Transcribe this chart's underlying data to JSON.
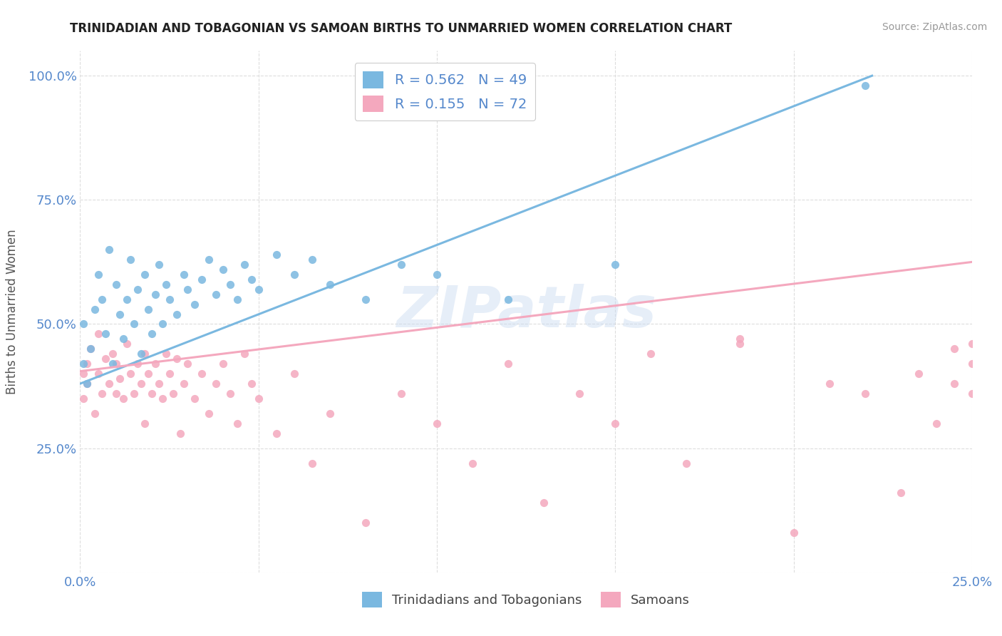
{
  "title": "TRINIDADIAN AND TOBAGONIAN VS SAMOAN BIRTHS TO UNMARRIED WOMEN CORRELATION CHART",
  "source": "Source: ZipAtlas.com",
  "ylabel": "Births to Unmarried Women",
  "blue_label": "Trinidadians and Tobagonians",
  "pink_label": "Samoans",
  "blue_R": "0.562",
  "blue_N": "49",
  "pink_R": "0.155",
  "pink_N": "72",
  "blue_color": "#7ab8e0",
  "pink_color": "#f4a8be",
  "watermark": "ZIPatlas",
  "blue_scatter_x": [
    0.001,
    0.001,
    0.002,
    0.003,
    0.004,
    0.005,
    0.006,
    0.007,
    0.008,
    0.009,
    0.01,
    0.011,
    0.012,
    0.013,
    0.014,
    0.015,
    0.016,
    0.017,
    0.018,
    0.019,
    0.02,
    0.021,
    0.022,
    0.023,
    0.024,
    0.025,
    0.027,
    0.029,
    0.03,
    0.032,
    0.034,
    0.036,
    0.038,
    0.04,
    0.042,
    0.044,
    0.046,
    0.048,
    0.05,
    0.055,
    0.06,
    0.065,
    0.07,
    0.08,
    0.09,
    0.1,
    0.12,
    0.15,
    0.22
  ],
  "blue_scatter_y": [
    0.42,
    0.5,
    0.38,
    0.45,
    0.53,
    0.6,
    0.55,
    0.48,
    0.65,
    0.42,
    0.58,
    0.52,
    0.47,
    0.55,
    0.63,
    0.5,
    0.57,
    0.44,
    0.6,
    0.53,
    0.48,
    0.56,
    0.62,
    0.5,
    0.58,
    0.55,
    0.52,
    0.6,
    0.57,
    0.54,
    0.59,
    0.63,
    0.56,
    0.61,
    0.58,
    0.55,
    0.62,
    0.59,
    0.57,
    0.64,
    0.6,
    0.63,
    0.58,
    0.55,
    0.62,
    0.6,
    0.55,
    0.62,
    0.98
  ],
  "pink_scatter_x": [
    0.001,
    0.001,
    0.002,
    0.002,
    0.003,
    0.004,
    0.005,
    0.005,
    0.006,
    0.007,
    0.008,
    0.009,
    0.01,
    0.01,
    0.011,
    0.012,
    0.013,
    0.014,
    0.015,
    0.016,
    0.017,
    0.018,
    0.018,
    0.019,
    0.02,
    0.021,
    0.022,
    0.023,
    0.024,
    0.025,
    0.026,
    0.027,
    0.028,
    0.029,
    0.03,
    0.032,
    0.034,
    0.036,
    0.038,
    0.04,
    0.042,
    0.044,
    0.046,
    0.048,
    0.05,
    0.055,
    0.06,
    0.065,
    0.07,
    0.08,
    0.09,
    0.1,
    0.11,
    0.12,
    0.13,
    0.14,
    0.15,
    0.16,
    0.17,
    0.185,
    0.185,
    0.2,
    0.21,
    0.22,
    0.23,
    0.235,
    0.24,
    0.245,
    0.245,
    0.25,
    0.25,
    0.25
  ],
  "pink_scatter_y": [
    0.4,
    0.35,
    0.42,
    0.38,
    0.45,
    0.32,
    0.48,
    0.4,
    0.36,
    0.43,
    0.38,
    0.44,
    0.36,
    0.42,
    0.39,
    0.35,
    0.46,
    0.4,
    0.36,
    0.42,
    0.38,
    0.44,
    0.3,
    0.4,
    0.36,
    0.42,
    0.38,
    0.35,
    0.44,
    0.4,
    0.36,
    0.43,
    0.28,
    0.38,
    0.42,
    0.35,
    0.4,
    0.32,
    0.38,
    0.42,
    0.36,
    0.3,
    0.44,
    0.38,
    0.35,
    0.28,
    0.4,
    0.22,
    0.32,
    0.1,
    0.36,
    0.3,
    0.22,
    0.42,
    0.14,
    0.36,
    0.3,
    0.44,
    0.22,
    0.46,
    0.47,
    0.08,
    0.38,
    0.36,
    0.16,
    0.4,
    0.3,
    0.45,
    0.38,
    0.46,
    0.36,
    0.42
  ],
  "blue_line_x": [
    0.0,
    0.222
  ],
  "blue_line_y": [
    0.38,
    1.0
  ],
  "pink_line_x": [
    0.0,
    0.25
  ],
  "pink_line_y": [
    0.405,
    0.625
  ],
  "xlim": [
    0.0,
    0.25
  ],
  "ylim": [
    0.0,
    1.05
  ],
  "xticks": [
    0.0,
    0.05,
    0.1,
    0.15,
    0.2,
    0.25
  ],
  "yticks": [
    0.0,
    0.25,
    0.5,
    0.75,
    1.0
  ],
  "xtick_labels": [
    "0.0%",
    "",
    "",
    "",
    "",
    "25.0%"
  ],
  "ytick_labels": [
    "",
    "25.0%",
    "50.0%",
    "75.0%",
    "100.0%"
  ],
  "tick_color": "#5588cc",
  "title_color": "#222222",
  "source_color": "#999999",
  "ylabel_color": "#555555",
  "grid_color": "#dddddd",
  "watermark_color": "#c8daf0"
}
